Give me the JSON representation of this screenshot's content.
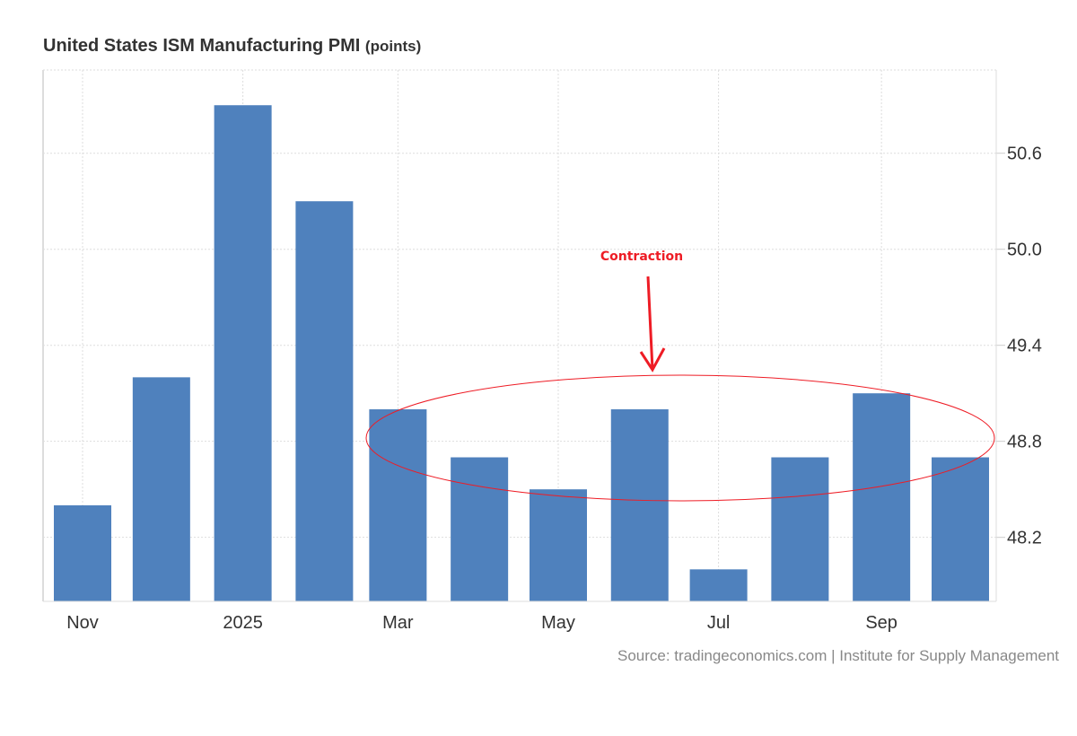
{
  "chart_data": {
    "type": "bar",
    "title": "United States ISM Manufacturing PMI",
    "unit": "(points)",
    "dates": [
      "2024-11-01",
      "2024-12-01",
      "2025-01-01",
      "2025-02-01",
      "2025-03-01",
      "2025-04-01",
      "2025-05-01",
      "2025-06-01",
      "2025-07-01",
      "2025-08-01",
      "2025-09-01",
      "2025-10-01"
    ],
    "values": [
      48.4,
      49.2,
      50.9,
      50.3,
      49.0,
      48.7,
      48.5,
      49.0,
      48.0,
      48.7,
      49.1,
      48.7
    ],
    "x_ticks": [
      {
        "date": "2024-11-01",
        "label": "Nov"
      },
      {
        "date": "2025-01-01",
        "label": "2025"
      },
      {
        "date": "2025-03-01",
        "label": "Mar"
      },
      {
        "date": "2025-05-01",
        "label": "May"
      },
      {
        "date": "2025-07-01",
        "label": "Jul"
      },
      {
        "date": "2025-09-01",
        "label": "Sep"
      }
    ],
    "y_ticks": [
      48.2,
      48.8,
      49.4,
      50.0,
      50.6
    ],
    "ylim": [
      47.8,
      51.12
    ],
    "y_axis_side": "right",
    "grid": true,
    "bar_color": "#4f81bd",
    "source": "Source: tradingeconomics.com | Institute for Supply Management",
    "annotation": {
      "text": "Contraction",
      "color": "#ee1c25",
      "range": [
        "2025-03-01",
        "2025-10-01"
      ]
    }
  }
}
